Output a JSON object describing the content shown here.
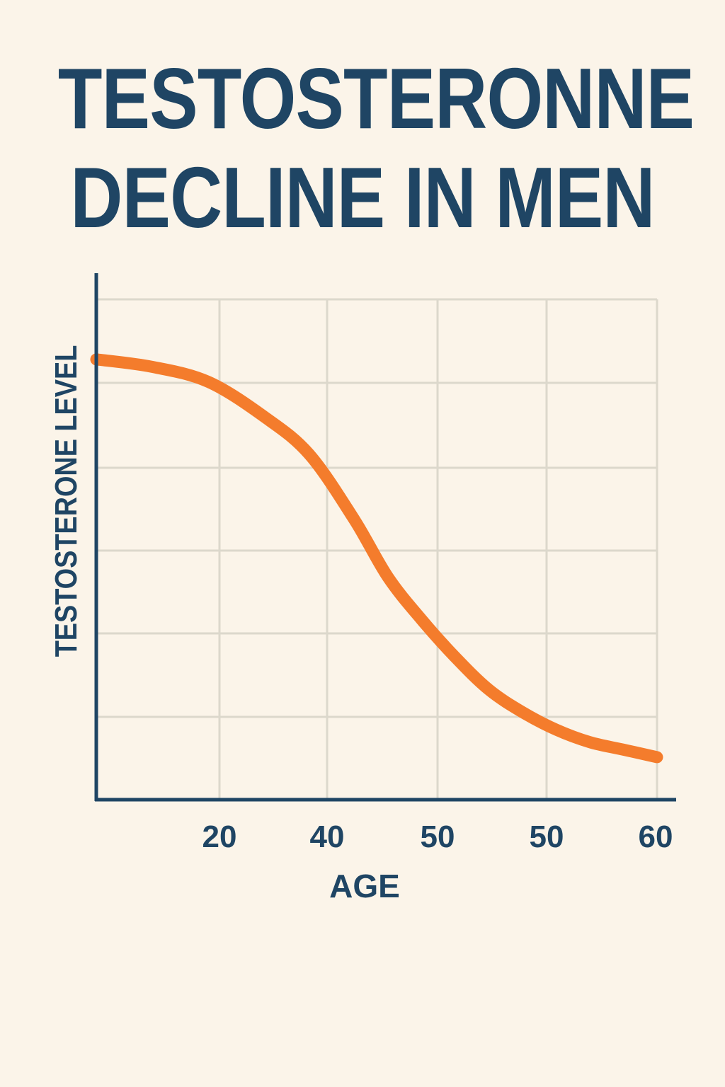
{
  "title": {
    "line1": "TESTOSTERONNE",
    "line2": "DECLINE IN MEN"
  },
  "colors": {
    "background": "#fbf4e9",
    "text": "#1f4564",
    "axis": "#1f4564",
    "grid": "#dcd8cc",
    "line": "#f47c2c"
  },
  "chart_data": {
    "type": "line",
    "title": "TESTOSTERONNE DECLINE IN MEN",
    "xlabel": "AGE",
    "ylabel": "TESTOSTERONE LEVEL",
    "x_tick_labels": [
      "20",
      "40",
      "50",
      "50",
      "60"
    ],
    "grid": true,
    "y_tick_labels": [],
    "series": [
      {
        "points": [
          {
            "x": 0.0,
            "y": 0.88
          },
          {
            "x": 0.1,
            "y": 0.865
          },
          {
            "x": 0.2,
            "y": 0.835
          },
          {
            "x": 0.3,
            "y": 0.765
          },
          {
            "x": 0.38,
            "y": 0.69
          },
          {
            "x": 0.46,
            "y": 0.56
          },
          {
            "x": 0.52,
            "y": 0.445
          },
          {
            "x": 0.58,
            "y": 0.36
          },
          {
            "x": 0.64,
            "y": 0.285
          },
          {
            "x": 0.7,
            "y": 0.22
          },
          {
            "x": 0.76,
            "y": 0.175
          },
          {
            "x": 0.82,
            "y": 0.14
          },
          {
            "x": 0.88,
            "y": 0.115
          },
          {
            "x": 0.94,
            "y": 0.1
          },
          {
            "x": 1.0,
            "y": 0.085
          }
        ]
      }
    ]
  }
}
